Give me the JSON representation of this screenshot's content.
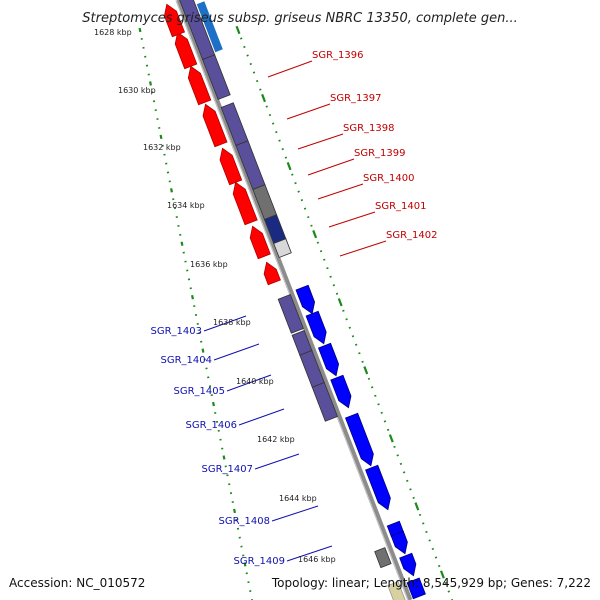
{
  "title": "Streptomyces griseus subsp. griseus NBRC 13350, complete gen...",
  "footer": {
    "accession": "Accession: NC_010572",
    "summary": "Topology: linear; Length: 8,545,929 bp; Genes: 7,222"
  },
  "scale_labels": [
    "1628 kbp",
    "1630 kbp",
    "1632 kbp",
    "1634 kbp",
    "1636 kbp",
    "1638 kbp",
    "1640 kbp",
    "1642 kbp",
    "1644 kbp",
    "1646 kbp"
  ],
  "genes_reverse": [
    "SGR_1396",
    "SGR_1397",
    "SGR_1398",
    "SGR_1399",
    "SGR_1400",
    "SGR_1401",
    "SGR_1402"
  ],
  "genes_forward": [
    "SGR_1403",
    "SGR_1404",
    "SGR_1405",
    "SGR_1406",
    "SGR_1407",
    "SGR_1408",
    "SGR_1409"
  ],
  "colors": {
    "reverse_strand": "#ff0000",
    "forward_strand": "#0000ff",
    "protein_track": "#5a4f9a",
    "backbone": "#999999",
    "scale_dots": "#1a8a1a",
    "reverse_label": "#c00000",
    "forward_label": "#1010b0"
  }
}
